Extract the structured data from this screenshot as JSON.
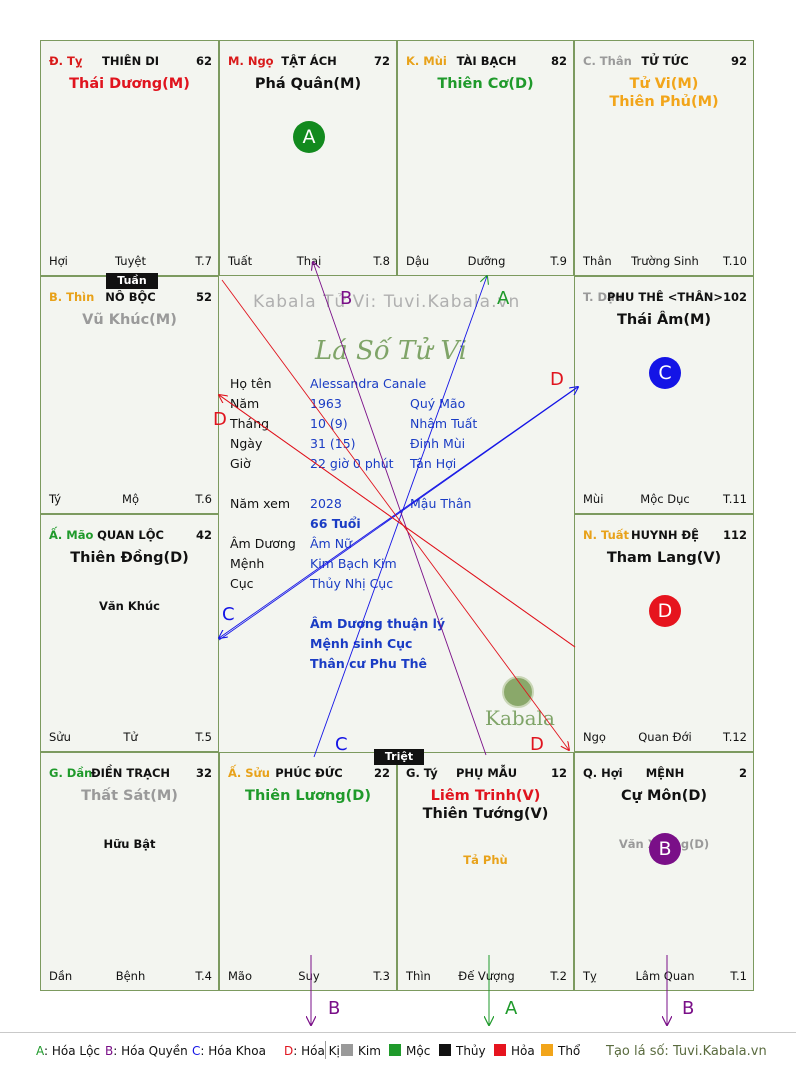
{
  "palaces": [
    {
      "branch": "Đ. Tỵ",
      "branch_color": "#d91a1a",
      "name": "THIÊN DI",
      "age": "62",
      "stars": [
        {
          "text": "Thái Dương(M)",
          "color": "#e0141e"
        }
      ],
      "minor": [],
      "footer": [
        "Hợi",
        "Tuyệt",
        "T.7"
      ]
    },
    {
      "branch": "M. Ngọ",
      "branch_color": "#d91a1a",
      "name": "TẬT ÁCH",
      "age": "72",
      "stars": [
        {
          "text": "Phá Quân(M)",
          "color": "#111111"
        }
      ],
      "minor": [],
      "footer": [
        "Tuất",
        "Thai",
        "T.8"
      ],
      "badge": {
        "letter": "A",
        "color": "#128a1e"
      }
    },
    {
      "branch": "K. Mùi",
      "branch_color": "#e8a21a",
      "name": "TÀI BẠCH",
      "age": "82",
      "stars": [
        {
          "text": "Thiên Cơ(D)",
          "color": "#1f9a2b"
        }
      ],
      "minor": [],
      "footer": [
        "Dậu",
        "Dưỡng",
        "T.9"
      ]
    },
    {
      "branch": "C. Thân",
      "branch_color": "#9a9a9a",
      "name": "TỬ TỨC",
      "age": "92",
      "stars": [
        {
          "text": "Tử Vi(M)",
          "color": "#f2a51a"
        },
        {
          "text": "Thiên Phủ(M)",
          "color": "#f2a51a"
        }
      ],
      "minor": [],
      "footer": [
        "Thân",
        "Trường Sinh",
        "T.10"
      ]
    },
    {
      "branch": "B. Thìn",
      "branch_color": "#e8a21a",
      "name": "NÔ BỘC",
      "age": "52",
      "stars": [
        {
          "text": "Vũ Khúc(M)",
          "color": "#9a9a9a"
        }
      ],
      "minor": [],
      "footer": [
        "Tý",
        "Mộ",
        "T.6"
      ]
    },
    {
      "branch": "T. Dậu",
      "branch_color": "#9a9a9a",
      "name": "PHU THÊ <THÂN>",
      "age": "102",
      "stars": [
        {
          "text": "Thái Âm(M)",
          "color": "#111111"
        }
      ],
      "minor": [],
      "footer": [
        "Mùi",
        "Mộc Dục",
        "T.11"
      ],
      "badge": {
        "letter": "C",
        "color": "#1414e6"
      }
    },
    {
      "branch": "Ấ. Mão",
      "branch_color": "#1f9a2b",
      "name": "QUAN LỘC",
      "age": "42",
      "stars": [
        {
          "text": "Thiên Đồng(D)",
          "color": "#111111"
        }
      ],
      "minor": [
        {
          "text": "Văn Khúc",
          "color": "#111111"
        }
      ],
      "footer": [
        "Sửu",
        "Tử",
        "T.5"
      ]
    },
    {
      "branch": "N. Tuất",
      "branch_color": "#e8a21a",
      "name": "HUYNH ĐỆ",
      "age": "112",
      "stars": [
        {
          "text": "Tham Lang(V)",
          "color": "#111111"
        }
      ],
      "minor": [],
      "footer": [
        "Ngọ",
        "Quan Đới",
        "T.12"
      ],
      "badge": {
        "letter": "D",
        "color": "#e6141e"
      }
    },
    {
      "branch": "G. Dần",
      "branch_color": "#1f9a2b",
      "name": "ĐIỀN TRẠCH",
      "age": "32",
      "stars": [
        {
          "text": "Thất Sát(M)",
          "color": "#9a9a9a"
        }
      ],
      "minor": [
        {
          "text": "Hữu Bật",
          "color": "#111111"
        }
      ],
      "footer": [
        "Dần",
        "Bệnh",
        "T.4"
      ]
    },
    {
      "branch": "Ấ. Sửu",
      "branch_color": "#e8a21a",
      "name": "PHÚC ĐỨC",
      "age": "22",
      "stars": [
        {
          "text": "Thiên Lương(D)",
          "color": "#1f9a2b"
        }
      ],
      "minor": [],
      "footer": [
        "Mão",
        "Suy",
        "T.3"
      ]
    },
    {
      "branch": "G. Tý",
      "branch_color": "#111111",
      "name": "PHỤ MẪU",
      "age": "12",
      "stars": [
        {
          "text": "Liêm Trinh(V)",
          "color": "#e0141e"
        },
        {
          "text": "Thiên Tướng(V)",
          "color": "#111111"
        }
      ],
      "minor": [
        {
          "text": "Tả Phù",
          "color": "#e8a21a"
        }
      ],
      "footer": [
        "Thìn",
        "Đế Vượng",
        "T.2"
      ]
    },
    {
      "branch": "Q. Hợi",
      "branch_color": "#111111",
      "name": "MỆNH",
      "age": "2",
      "stars": [
        {
          "text": "Cự Môn(D)",
          "color": "#111111"
        }
      ],
      "minor": [
        {
          "text": "Văn Xương(D)",
          "color": "#9a9a9a"
        }
      ],
      "footer": [
        "Tỵ",
        "Lâm Quan",
        "T.1"
      ],
      "badge": {
        "letter": "B",
        "color": "#7a0f88"
      }
    }
  ],
  "tags": {
    "tuan": "Tuần",
    "triet": "Triệt"
  },
  "watermark": {
    "site": "Kabala Tử Vi: Tuvi.Kabala.vn",
    "script": "Lá Số Tử Vi",
    "brand": "Kabala"
  },
  "info": [
    {
      "label": "Họ tên",
      "value": "Alessandra Canale",
      "extra": ""
    },
    {
      "label": "Năm",
      "value": "1963",
      "extra": "Quý Mão"
    },
    {
      "label": "Tháng",
      "value": "10  (9)",
      "extra": "Nhâm Tuất"
    },
    {
      "label": "Ngày",
      "value": "31  (15)",
      "extra": "Đinh Mùi"
    },
    {
      "label": "Giờ",
      "value": "22 giờ 0 phút",
      "extra": "Tân Hợi"
    },
    {
      "label": "Năm xem",
      "value": "2028",
      "extra": "Mậu Thân"
    },
    {
      "label": "",
      "value": "66 Tuổi",
      "extra": ""
    },
    {
      "label": "Âm Dương",
      "value": "Âm Nữ",
      "extra": ""
    },
    {
      "label": "Mệnh",
      "value": "Kim Bạch Kim",
      "extra": ""
    },
    {
      "label": "Cục",
      "value": "Thủy Nhị Cục",
      "extra": ""
    }
  ],
  "notes": [
    "Âm Dương thuận lý",
    "Mệnh sinh Cục",
    "Thân cư Phu Thê"
  ],
  "arrow_labels": [
    "A",
    "B",
    "C",
    "D"
  ],
  "legend": {
    "hoa": [
      {
        "k": "A",
        "t": ": Hóa Lộc",
        "c": "#1f9a2b"
      },
      {
        "k": "B",
        "t": ": Hóa Quyền",
        "c": "#7a0f88"
      },
      {
        "k": "C",
        "t": ": Hóa Khoa",
        "c": "#1414e6"
      },
      {
        "k": "D",
        "t": ": Hóa Kị",
        "c": "#e0141e"
      }
    ],
    "elements": [
      {
        "t": "Kim",
        "c": "#9a9a9a"
      },
      {
        "t": "Mộc",
        "c": "#1f9a2b"
      },
      {
        "t": "Thủy",
        "c": "#111111"
      },
      {
        "t": "Hỏa",
        "c": "#e6141e"
      },
      {
        "t": "Thổ",
        "c": "#f2a51a"
      }
    ],
    "credit": "Tạo lá số: Tuvi.Kabala.vn"
  },
  "colors": {
    "border": "#7c9a5f",
    "loc": "#1f9a2b",
    "quyen": "#7a0f88",
    "khoa": "#1414e6",
    "ki": "#e0141e"
  }
}
